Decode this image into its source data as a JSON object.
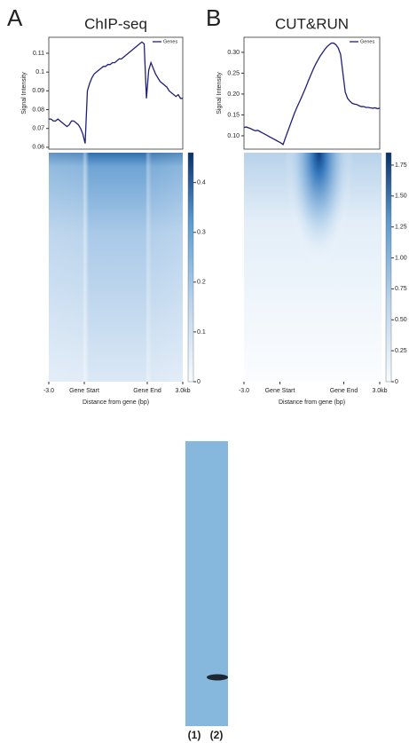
{
  "chart_data": [
    {
      "type": "line",
      "panel": "A",
      "title": "ChIP-seq",
      "ylabel": "Signal Intensity",
      "series": [
        {
          "name": "Genes",
          "color": "#1f1f7a",
          "values": [
            0.075,
            0.075,
            0.074,
            0.074,
            0.075,
            0.074,
            0.073,
            0.072,
            0.071,
            0.072,
            0.074,
            0.074,
            0.073,
            0.072,
            0.07,
            0.067,
            0.062,
            0.09,
            0.094,
            0.097,
            0.099,
            0.1,
            0.101,
            0.102,
            0.103,
            0.103,
            0.104,
            0.104,
            0.105,
            0.105,
            0.106,
            0.107,
            0.107,
            0.108,
            0.109,
            0.11,
            0.111,
            0.112,
            0.113,
            0.114,
            0.115,
            0.116,
            0.115,
            0.086,
            0.101,
            0.105,
            0.102,
            0.099,
            0.097,
            0.095,
            0.094,
            0.093,
            0.092,
            0.09,
            0.089,
            0.088,
            0.087,
            0.088,
            0.086,
            0.086
          ]
        }
      ],
      "ylim": [
        0.059,
        0.1185
      ],
      "yticks": [
        0.06,
        0.07,
        0.08,
        0.09,
        0.1,
        0.11
      ],
      "heatmap": {
        "xticks": [
          "-3.0",
          "Gene Start",
          "Gene End",
          "3.0kb"
        ],
        "xlabel": "Distance from gene (bp)",
        "clim": [
          0,
          0.46
        ],
        "colorbar_ticks": [
          0,
          0.1,
          0.2,
          0.3,
          0.4
        ]
      }
    },
    {
      "type": "line",
      "panel": "B",
      "title": "CUT&RUN",
      "ylabel": "Signal Intensity",
      "series": [
        {
          "name": "Genes",
          "color": "#1f1f7a",
          "values": [
            0.12,
            0.121,
            0.119,
            0.117,
            0.114,
            0.112,
            0.113,
            0.11,
            0.107,
            0.104,
            0.101,
            0.098,
            0.095,
            0.092,
            0.089,
            0.086,
            0.083,
            0.079,
            0.095,
            0.11,
            0.125,
            0.14,
            0.155,
            0.168,
            0.18,
            0.192,
            0.205,
            0.218,
            0.232,
            0.245,
            0.258,
            0.27,
            0.28,
            0.29,
            0.298,
            0.306,
            0.313,
            0.318,
            0.322,
            0.322,
            0.318,
            0.31,
            0.295,
            0.25,
            0.205,
            0.19,
            0.183,
            0.178,
            0.176,
            0.175,
            0.172,
            0.17,
            0.17,
            0.168,
            0.168,
            0.167,
            0.166,
            0.167,
            0.165,
            0.166
          ]
        }
      ],
      "ylim": [
        0.068,
        0.336
      ],
      "yticks": [
        {
          "value": 0.1,
          "label": "0.10"
        },
        {
          "value": 0.15,
          "label": "0.15"
        },
        {
          "value": 0.2,
          "label": "0.20"
        },
        {
          "value": 0.25,
          "label": "0.25"
        },
        {
          "value": 0.3,
          "label": "0.30"
        }
      ],
      "heatmap": {
        "xticks": [
          "-3.0",
          "Gene Start",
          "Gene End",
          "3.0kb"
        ],
        "xlabel": "Distance from gene (bp)",
        "clim": [
          0,
          1.85
        ],
        "colorbar_ticks": [
          0,
          0.25,
          {
            "value": 0.5,
            "label": "0.50"
          },
          0.75,
          {
            "value": 1,
            "label": "1.00"
          },
          1.25,
          {
            "value": 1.5,
            "label": "1.50"
          },
          1.75
        ]
      }
    }
  ],
  "blot": {
    "lanes": [
      "(1)",
      "(2)"
    ]
  }
}
